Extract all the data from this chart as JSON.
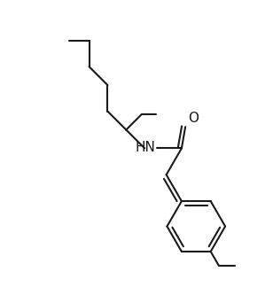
{
  "background_color": "#ffffff",
  "line_color": "#1a1a1a",
  "line_width": 1.5,
  "text_color": "#1a1a1a",
  "font_size_label": 10,
  "font_size_atom": 10
}
